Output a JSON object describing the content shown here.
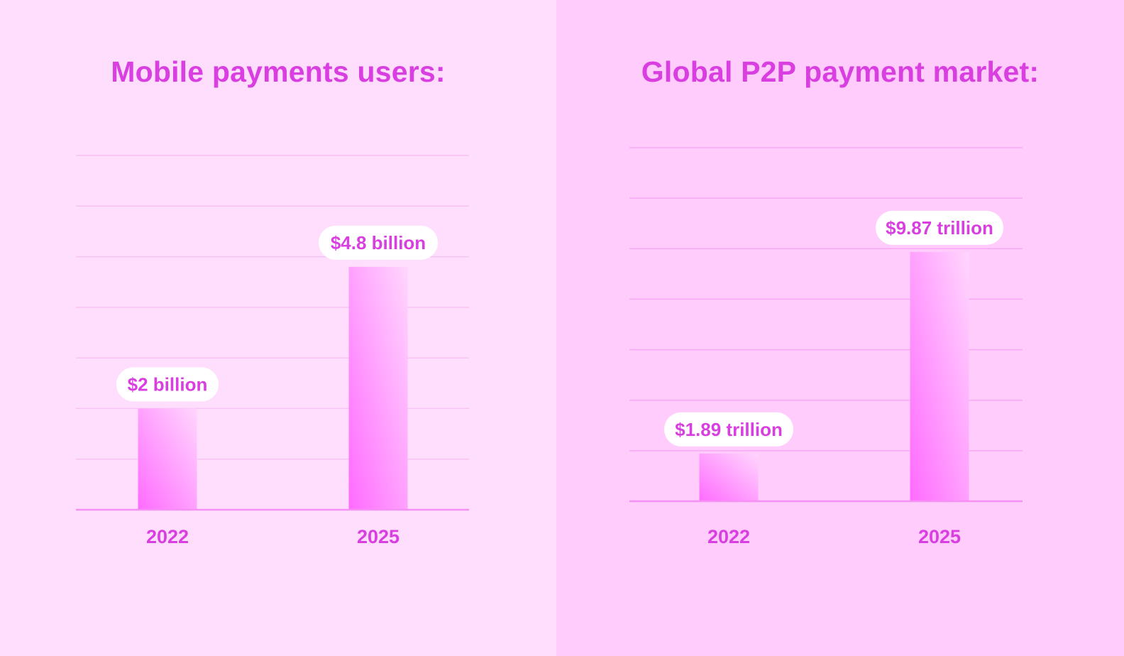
{
  "colors": {
    "left_background": "#ffdefd",
    "right_background": "#ffccfc",
    "accent_text": "#d93fe0",
    "bar_dark": "#ff6bff",
    "bar_light": "#ffd6fd",
    "baseline": "#f590f5",
    "label_pill": "#ffffff"
  },
  "chart_data": [
    {
      "type": "bar",
      "title": "Mobile payments users:",
      "categories": [
        "2022",
        "2025"
      ],
      "values": [
        2,
        4.8
      ],
      "data_labels": [
        "$2 billion",
        "$4.8 billion"
      ],
      "unit": "billion",
      "ylim": [
        0,
        7
      ],
      "grid": true,
      "legend": "none"
    },
    {
      "type": "bar",
      "title": "Global P2P payment market:",
      "categories": [
        "2022",
        "2025"
      ],
      "values": [
        1.89,
        9.87
      ],
      "data_labels": [
        "$1.89 trillion",
        "$9.87 trillion"
      ],
      "unit": "trillion",
      "ylim": [
        0,
        14
      ],
      "grid": true,
      "legend": "none"
    }
  ]
}
